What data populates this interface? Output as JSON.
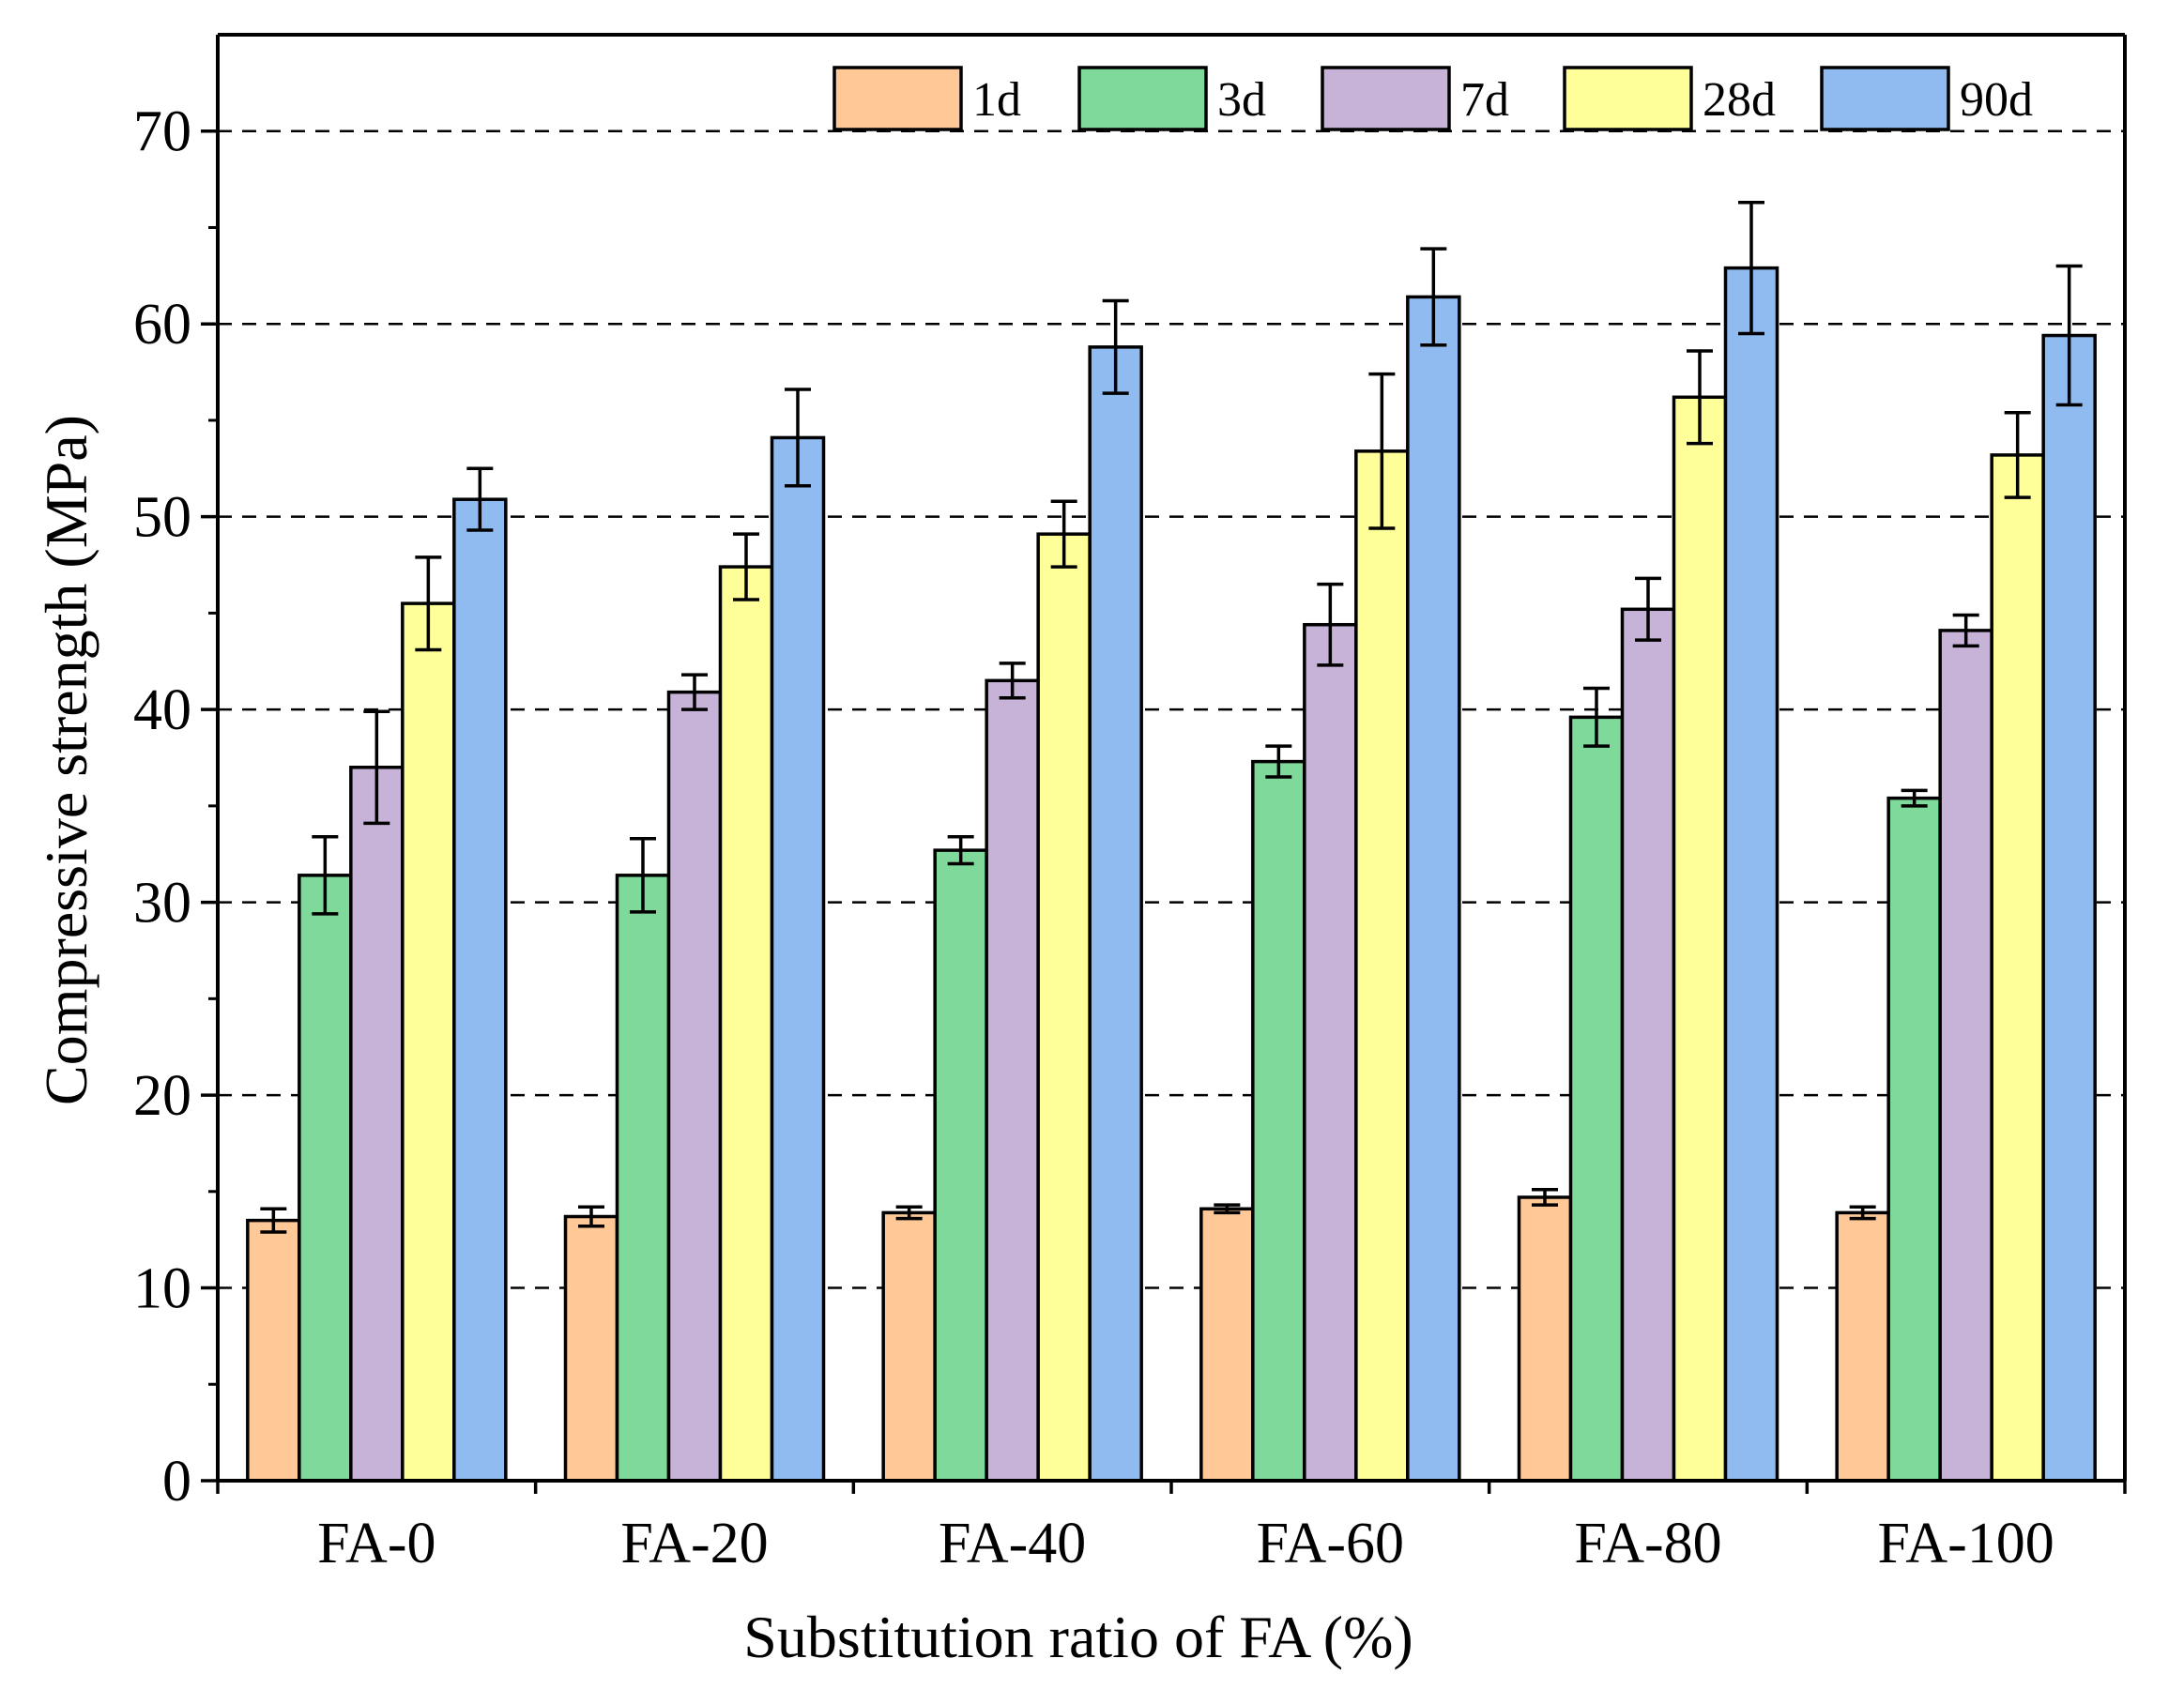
{
  "chart_data": {
    "type": "bar",
    "title": "",
    "xlabel": "Substitution ratio of FA (%)",
    "ylabel": "Compressive strength (MPa)",
    "ylim": [
      0,
      75
    ],
    "yticks": [
      0,
      10,
      20,
      30,
      40,
      50,
      60,
      70
    ],
    "grid": "horizontal dashed at major ticks",
    "legend_position": "top-right, single row",
    "categories": [
      "FA-0",
      "FA-20",
      "FA-40",
      "FA-60",
      "FA-80",
      "FA-100"
    ],
    "series": [
      {
        "name": "1d",
        "color": "#FFC897",
        "values": [
          13.5,
          13.7,
          13.9,
          14.1,
          14.7,
          13.9
        ],
        "errors": [
          0.6,
          0.5,
          0.3,
          0.2,
          0.4,
          0.3
        ]
      },
      {
        "name": "3d",
        "color": "#7FD99B",
        "values": [
          31.4,
          31.4,
          32.7,
          37.3,
          39.6,
          35.4
        ],
        "errors": [
          2.0,
          1.9,
          0.7,
          0.8,
          1.5,
          0.4
        ]
      },
      {
        "name": "7d",
        "color": "#C8B3D8",
        "values": [
          37.0,
          40.9,
          41.5,
          44.4,
          45.2,
          44.1
        ],
        "errors": [
          2.9,
          0.9,
          0.9,
          2.1,
          1.6,
          0.8
        ]
      },
      {
        "name": "28d",
        "color": "#FFFF99",
        "values": [
          45.5,
          47.4,
          49.1,
          53.4,
          56.2,
          53.2
        ],
        "errors": [
          2.4,
          1.7,
          1.7,
          4.0,
          2.4,
          2.2
        ]
      },
      {
        "name": "90d",
        "color": "#8FBBF1",
        "values": [
          50.9,
          54.1,
          58.8,
          61.4,
          62.9,
          59.4
        ],
        "errors": [
          1.6,
          2.5,
          2.4,
          2.5,
          3.4,
          3.6
        ]
      }
    ]
  }
}
